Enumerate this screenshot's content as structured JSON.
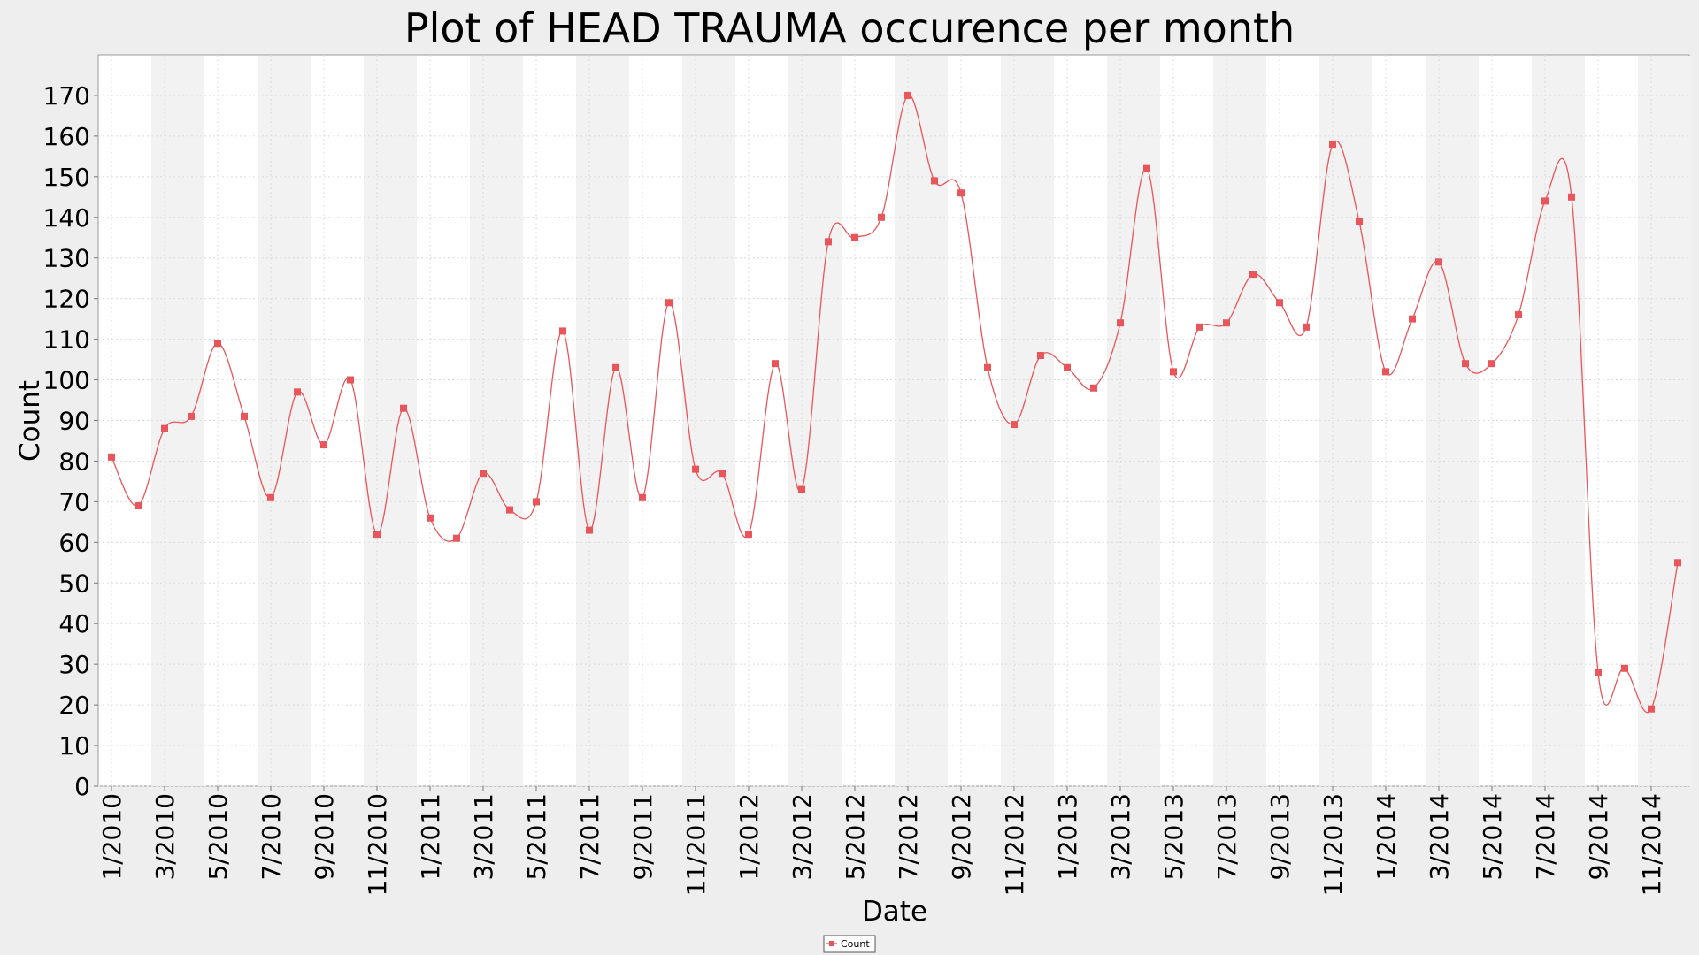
{
  "chart_data": {
    "type": "line",
    "title": "Plot of HEAD TRAUMA occurence per month",
    "xlabel": "Date",
    "ylabel": "Count",
    "ylim": [
      0,
      180
    ],
    "y_ticks": [
      0,
      10,
      20,
      30,
      40,
      50,
      60,
      70,
      80,
      90,
      100,
      110,
      120,
      130,
      140,
      150,
      160,
      170
    ],
    "x_tick_labels": [
      "1/2010",
      "3/2010",
      "5/2010",
      "7/2010",
      "9/2010",
      "11/2010",
      "1/2011",
      "3/2011",
      "5/2011",
      "7/2011",
      "9/2011",
      "11/2011",
      "1/2012",
      "3/2012",
      "5/2012",
      "7/2012",
      "9/2012",
      "11/2012",
      "1/2013",
      "3/2013",
      "5/2013",
      "7/2013",
      "9/2013",
      "11/2013",
      "1/2014",
      "3/2014",
      "5/2014",
      "7/2014",
      "9/2014",
      "11/2014"
    ],
    "categories": [
      "1/2010",
      "2/2010",
      "3/2010",
      "4/2010",
      "5/2010",
      "6/2010",
      "7/2010",
      "8/2010",
      "9/2010",
      "10/2010",
      "11/2010",
      "12/2010",
      "1/2011",
      "2/2011",
      "3/2011",
      "4/2011",
      "5/2011",
      "6/2011",
      "7/2011",
      "8/2011",
      "9/2011",
      "10/2011",
      "11/2011",
      "12/2011",
      "1/2012",
      "2/2012",
      "3/2012",
      "4/2012",
      "5/2012",
      "6/2012",
      "7/2012",
      "8/2012",
      "9/2012",
      "10/2012",
      "11/2012",
      "12/2012",
      "1/2013",
      "2/2013",
      "3/2013",
      "4/2013",
      "5/2013",
      "6/2013",
      "7/2013",
      "8/2013",
      "9/2013",
      "10/2013",
      "11/2013",
      "12/2013",
      "1/2014",
      "2/2014",
      "3/2014",
      "4/2014",
      "5/2014",
      "6/2014",
      "7/2014",
      "8/2014",
      "9/2014",
      "10/2014",
      "11/2014",
      "12/2014"
    ],
    "series": [
      {
        "name": "Count",
        "color": "#e8555a",
        "values": [
          81,
          69,
          88,
          91,
          109,
          91,
          71,
          97,
          84,
          100,
          62,
          93,
          66,
          61,
          77,
          68,
          70,
          112,
          63,
          103,
          71,
          119,
          78,
          77,
          62,
          104,
          73,
          134,
          135,
          140,
          170,
          149,
          146,
          103,
          89,
          106,
          103,
          98,
          114,
          152,
          102,
          113,
          114,
          126,
          119,
          113,
          158,
          139,
          102,
          115,
          129,
          104,
          104,
          116,
          144,
          145,
          28,
          29,
          19,
          55
        ]
      }
    ],
    "grid": true,
    "legend_position": "bottom-center",
    "colors": {
      "background": "#eeeeee",
      "plot_background": "#ffffff",
      "band_shade": "#f2f2f2",
      "gridline": "#dcdcdc",
      "line": "#e8555a",
      "marker": "#e8555a"
    }
  }
}
